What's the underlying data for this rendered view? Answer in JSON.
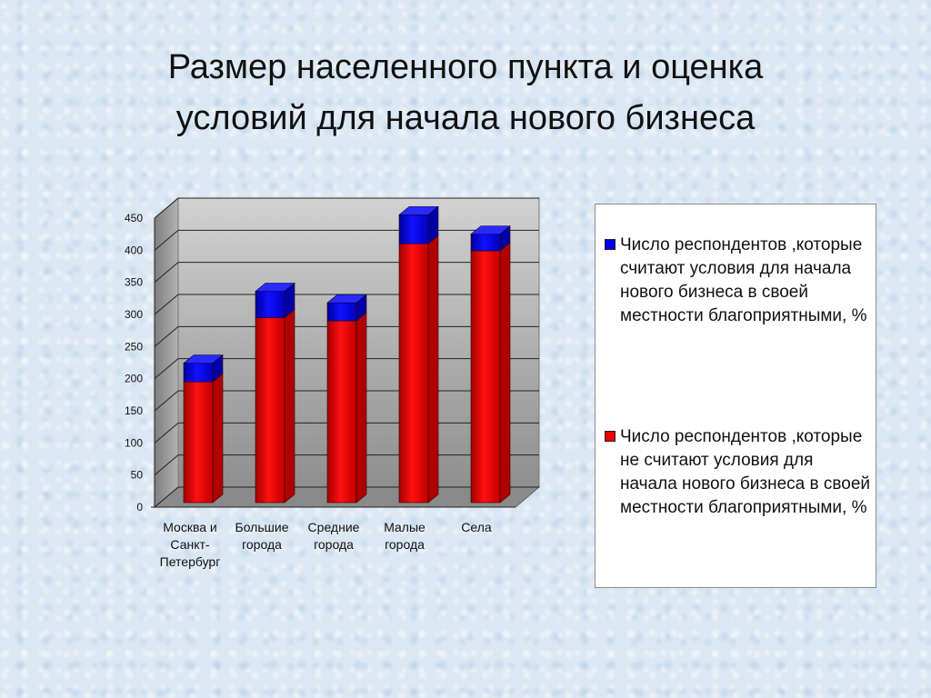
{
  "title": {
    "line1": "Размер населенного пункта и оценка",
    "line2": "условий для начала нового бизнеса"
  },
  "colors": {
    "favorable": "#0000ee",
    "unfavorable": "#ee0000",
    "wall": "#a6a6a6",
    "floor": "#8a8a8a"
  },
  "chart_data": {
    "type": "bar",
    "stacked": true,
    "three_d": true,
    "categories": [
      [
        "Москва и",
        "Санкт-",
        "Петербург"
      ],
      [
        "Большие",
        "города"
      ],
      [
        "Средние",
        "города"
      ],
      [
        "Малые",
        "города"
      ],
      [
        "Села"
      ]
    ],
    "series": [
      {
        "name": "Число респондентов ,которые не считают условия для начала нового бизнеса в своей местности благоприятными, %",
        "color": "#ee0000",
        "values": [
          188,
          288,
          283,
          403,
          392
        ]
      },
      {
        "name": "Число респондентов ,которые считают условия для начала нового бизнеса в своей местности благоприятными, %",
        "color": "#0000ee",
        "values": [
          29,
          41,
          28,
          45,
          26
        ]
      }
    ],
    "ylim": [
      0,
      450
    ],
    "yticks": [
      0,
      50,
      100,
      150,
      200,
      250,
      300,
      350,
      400,
      450
    ],
    "grid": true,
    "legend_position": "right"
  },
  "legend": {
    "items": [
      {
        "label": "Число респондентов ,которые считают условия для начала нового бизнеса в своей местности благоприятными, %",
        "color": "#0000ee"
      },
      {
        "label": "Число респондентов ,которые не считают условия для начала нового бизнеса в своей местности благоприятными, %",
        "color": "#ee0000"
      }
    ]
  }
}
